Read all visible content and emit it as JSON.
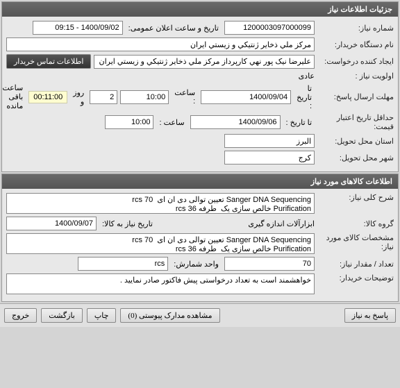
{
  "panel1": {
    "title": "جزئیات اطلاعات نیاز",
    "rows": {
      "need_no_label": "شماره نیاز:",
      "need_no": "1200003097000099",
      "announce_label": "تاریخ و ساعت اعلان عمومی:",
      "announce_value": "1400/09/02 - 09:15",
      "buyer_label": "نام دستگاه خریدار:",
      "buyer_value": "مرکز ملي ذخایر ژنتیکي و زیستي ایران",
      "requester_label": "ایجاد کننده درخواست:",
      "requester_value": "علیرضا نیک پور نهي کارپرداز مرکز ملي ذخایر ژنتیکي و زیستي ایران",
      "contact_btn": "اطلاعات تماس خریدار",
      "priority_label": "اولویت نیاز :",
      "priority_value": "عادی",
      "deadline_label": "مهلت ارسال پاسخ:",
      "until_label": "تا تاریخ :",
      "deadline_date": "1400/09/04",
      "time_label": "ساعت :",
      "deadline_time": "10:00",
      "days": "2",
      "days_label": "روز و",
      "remaining_time": "00:11:00",
      "remaining_label": "ساعت باقی مانده",
      "validity_label": "حداقل تاریخ اعتبار قیمت:",
      "validity_until": "تا تاریخ :",
      "validity_date": "1400/09/06",
      "validity_time_label": "ساعت :",
      "validity_time": "10:00",
      "province_label": "استان محل تحویل:",
      "province_value": "البرز",
      "city_label": "شهر محل تحویل:",
      "city_value": "کرج"
    }
  },
  "panel2": {
    "title": "اطلاعات کالاهای مورد نیاز",
    "desc_label": "شرح کلی نیاز:",
    "desc_value": "Sanger DNA Sequencing تعیین توالی دی ان ای  70 rcs\nPurification خالص سازی یک  طرفه 36 rcs",
    "group_label": "گروه کالا:",
    "group_value": "ابزارآلات اندازه گیری",
    "need_date_label": "تاریخ نیاز به کالا:",
    "need_date": "1400/09/07",
    "spec_label": "مشخصات کالای مورد نیاز:",
    "spec_value": "Sanger DNA Sequencing تعیین توالی دی ان ای  70 rcs\nPurification خالص سازی یک  طرفه 36 rcs",
    "qty_label": "تعداد / مقدار نیاز:",
    "qty_value": "70",
    "unit_label": "واحد شمارش:",
    "unit_value": "rcs",
    "notes_label": "توضیحات خریدار:",
    "notes_value": "خواهشمند است به تعداد درخواستی پیش فاکتور صادر نمایید ."
  },
  "footer": {
    "respond": "پاسخ به نیاز",
    "attachments": "مشاهده مدارک پیوستی (0)",
    "print": "چاپ",
    "back": "بازگشت",
    "exit": "خروج"
  }
}
